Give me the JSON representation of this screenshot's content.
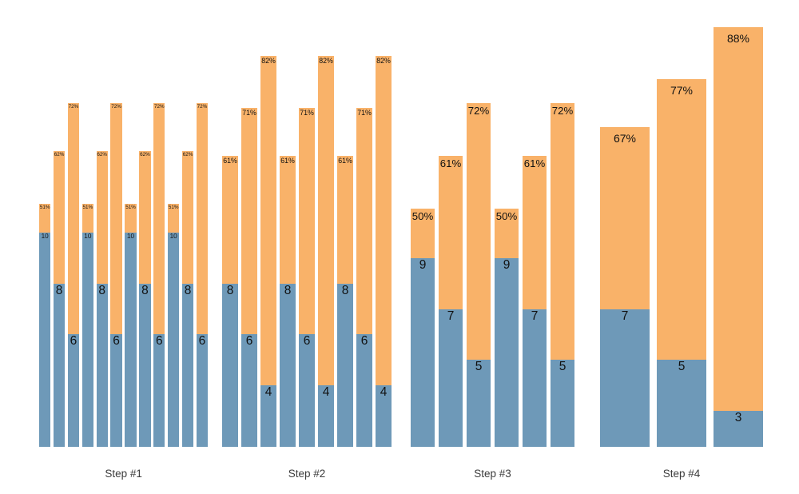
{
  "chart_data": {
    "type": "bar",
    "variant": "stacked-vertical",
    "orientation": "vertical",
    "grid": false,
    "legend": false,
    "ylim_pct": [
      0,
      100
    ],
    "colors": {
      "bottom_segment": "#6e99b8",
      "top_segment": "#f9b269",
      "inside_labels": "#111111",
      "axis_labels": "#3c3c3c",
      "background": "#ffffff"
    },
    "series_semantics": {
      "bottom_segment": "count (blue, labeled with number)",
      "top_segment": "total percent (orange, labeled at bar top)"
    },
    "groups": [
      {
        "label": "Step #1",
        "bars": [
          {
            "value": 10,
            "pct": 51,
            "pct_label": "51%"
          },
          {
            "value": 8,
            "pct": 62,
            "pct_label": "62%"
          },
          {
            "value": 6,
            "pct": 72,
            "pct_label": "72%"
          },
          {
            "value": 10,
            "pct": 51,
            "pct_label": "51%"
          },
          {
            "value": 8,
            "pct": 62,
            "pct_label": "62%"
          },
          {
            "value": 6,
            "pct": 72,
            "pct_label": "72%"
          },
          {
            "value": 10,
            "pct": 51,
            "pct_label": "51%"
          },
          {
            "value": 8,
            "pct": 62,
            "pct_label": "62%"
          },
          {
            "value": 6,
            "pct": 72,
            "pct_label": "72%"
          },
          {
            "value": 10,
            "pct": 51,
            "pct_label": "51%"
          },
          {
            "value": 8,
            "pct": 62,
            "pct_label": "62%"
          },
          {
            "value": 6,
            "pct": 72,
            "pct_label": "72%"
          }
        ]
      },
      {
        "label": "Step #2",
        "bars": [
          {
            "value": 8,
            "pct": 61,
            "pct_label": "61%"
          },
          {
            "value": 6,
            "pct": 71,
            "pct_label": "71%"
          },
          {
            "value": 4,
            "pct": 82,
            "pct_label": "82%"
          },
          {
            "value": 8,
            "pct": 61,
            "pct_label": "61%"
          },
          {
            "value": 6,
            "pct": 71,
            "pct_label": "71%"
          },
          {
            "value": 4,
            "pct": 82,
            "pct_label": "82%"
          },
          {
            "value": 8,
            "pct": 61,
            "pct_label": "61%"
          },
          {
            "value": 6,
            "pct": 71,
            "pct_label": "71%"
          },
          {
            "value": 4,
            "pct": 82,
            "pct_label": "82%"
          }
        ]
      },
      {
        "label": "Step #3",
        "bars": [
          {
            "value": 9,
            "pct": 50,
            "pct_label": "50%"
          },
          {
            "value": 7,
            "pct": 61,
            "pct_label": "61%"
          },
          {
            "value": 5,
            "pct": 72,
            "pct_label": "72%"
          },
          {
            "value": 9,
            "pct": 50,
            "pct_label": "50%"
          },
          {
            "value": 7,
            "pct": 61,
            "pct_label": "61%"
          },
          {
            "value": 5,
            "pct": 72,
            "pct_label": "72%"
          }
        ]
      },
      {
        "label": "Step #4",
        "bars": [
          {
            "value": 7,
            "pct": 67,
            "pct_label": "67%"
          },
          {
            "value": 5,
            "pct": 77,
            "pct_label": "77%"
          },
          {
            "value": 3,
            "pct": 88,
            "pct_label": "88%"
          }
        ]
      }
    ]
  }
}
